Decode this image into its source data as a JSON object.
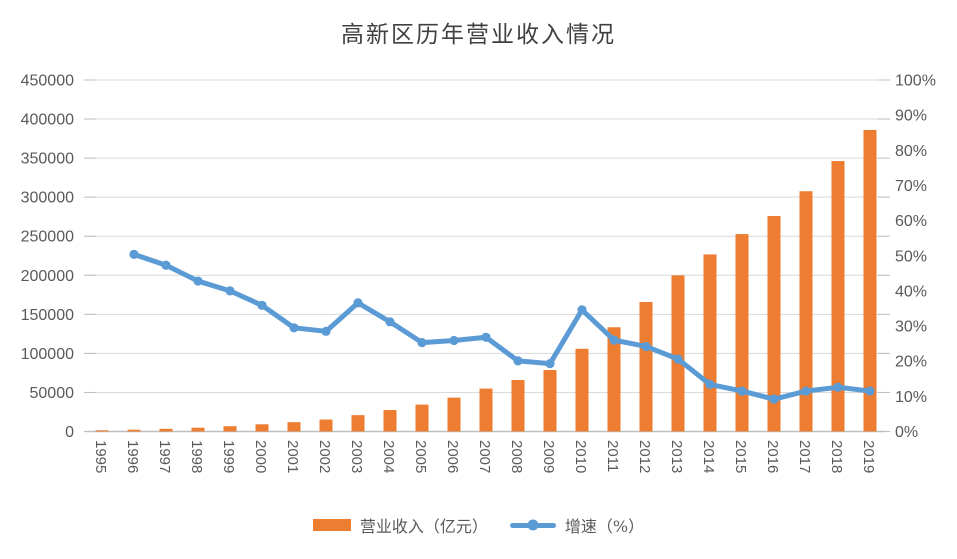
{
  "title": "高新区历年营业收入情况",
  "legend": [
    {
      "label": "营业收入（亿元）",
      "type": "bar",
      "color": "#ED7D31"
    },
    {
      "label": "增速（%）",
      "type": "line",
      "color": "#5B9BD5"
    }
  ],
  "chart_data": {
    "type": "combo",
    "title": "高新区历年营业收入情况",
    "categories": [
      "1995",
      "1996",
      "1997",
      "1998",
      "1999",
      "2000",
      "2001",
      "2002",
      "2003",
      "2004",
      "2005",
      "2006",
      "2007",
      "2008",
      "2009",
      "2010",
      "2011",
      "2012",
      "2013",
      "2014",
      "2015",
      "2016",
      "2017",
      "2018",
      "2019"
    ],
    "series": [
      {
        "name": "营业收入（亿元）",
        "type": "bar",
        "axis": "left",
        "color": "#ED7D31",
        "values": [
          1529,
          2300,
          3388,
          4839,
          6775,
          9209,
          11928,
          15326,
          20939,
          27466,
          34416,
          43320,
          54925,
          65986,
          78707,
          105917,
          133434,
          165757,
          199902,
          226704,
          252705,
          275886,
          307586,
          346221,
          386057
        ]
      },
      {
        "name": "增速（%）",
        "type": "line",
        "axis": "right",
        "color": "#5B9BD5",
        "values": [
          null,
          50.4,
          47.3,
          42.8,
          40.0,
          35.9,
          29.5,
          28.5,
          36.6,
          31.2,
          25.3,
          25.9,
          26.8,
          20.1,
          19.3,
          34.6,
          26.0,
          24.2,
          20.6,
          13.4,
          11.5,
          9.2,
          11.5,
          12.6,
          11.5
        ]
      }
    ],
    "left_axis": {
      "min": 0,
      "max": 450000,
      "step": 50000,
      "tick_labels": [
        "0",
        "50000",
        "100000",
        "150000",
        "200000",
        "250000",
        "300000",
        "350000",
        "400000",
        "450000"
      ]
    },
    "right_axis": {
      "min": 0,
      "max": 100,
      "step": 10,
      "tick_labels": [
        "0%",
        "10%",
        "20%",
        "30%",
        "40%",
        "50%",
        "60%",
        "70%",
        "80%",
        "90%",
        "100%"
      ]
    },
    "grid": true,
    "legend_position": "bottom"
  },
  "colors": {
    "bar": "#ED7D31",
    "line": "#5B9BD5",
    "gridline": "#D9D9D9",
    "axis_line": "#BFBFBF",
    "tick": "#BFBFBF",
    "label": "#595959",
    "title": "#404040",
    "background": "#FFFFFF"
  }
}
